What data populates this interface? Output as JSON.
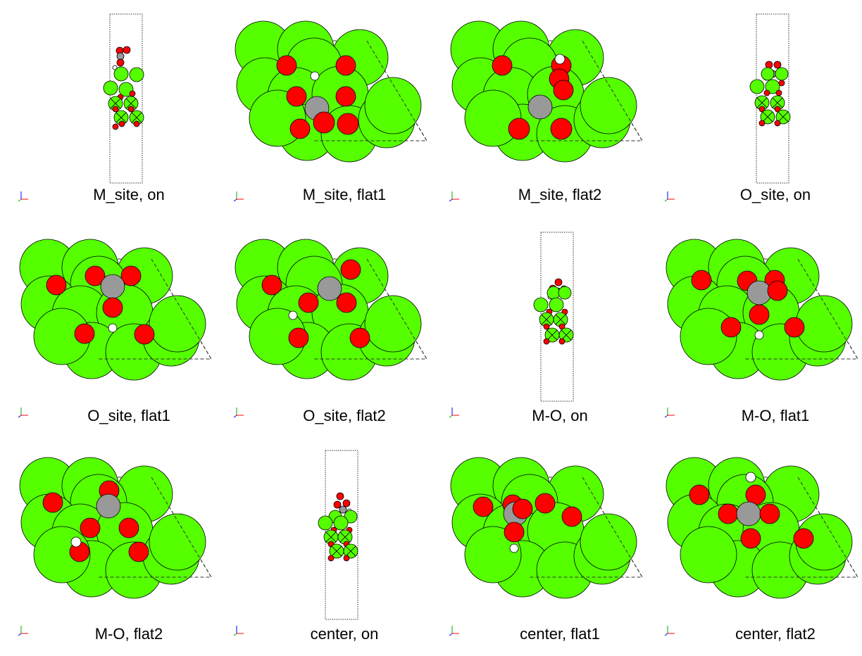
{
  "colors": {
    "metal": "#55ff00",
    "oxygen": "#ff0000",
    "carbon": "#999999",
    "hydrogen": "#ffffff",
    "outline": "#000000",
    "cell": "#333333",
    "axis_x": "#ff0000",
    "axis_y": "#00aa00",
    "axis_z": "#0000ff"
  },
  "panels": [
    {
      "caption": "M_site, on",
      "view": "side",
      "variant": 0,
      "axes": "zx"
    },
    {
      "caption": "M_site, flat1",
      "view": "top",
      "variant": 0,
      "axes": "yx"
    },
    {
      "caption": "M_site, flat2",
      "view": "top",
      "variant": 1,
      "axes": "yx"
    },
    {
      "caption": "O_site, on",
      "view": "side",
      "variant": 1,
      "axes": "zx"
    },
    {
      "caption": "O_site, flat1",
      "view": "top",
      "variant": 2,
      "axes": "yx"
    },
    {
      "caption": "O_site, flat2",
      "view": "top",
      "variant": 3,
      "axes": "yx"
    },
    {
      "caption": "M-O, on",
      "view": "side",
      "variant": 2,
      "axes": "zx"
    },
    {
      "caption": "M-O, flat1",
      "view": "top",
      "variant": 4,
      "axes": "yx"
    },
    {
      "caption": "M-O, flat2",
      "view": "top",
      "variant": 5,
      "axes": "yx"
    },
    {
      "caption": "center, on",
      "view": "side",
      "variant": 3,
      "axes": "zx"
    },
    {
      "caption": "center, flat1",
      "view": "top",
      "variant": 6,
      "axes": "yx"
    },
    {
      "caption": "center, flat2",
      "view": "top",
      "variant": 7,
      "axes": "yx"
    }
  ]
}
